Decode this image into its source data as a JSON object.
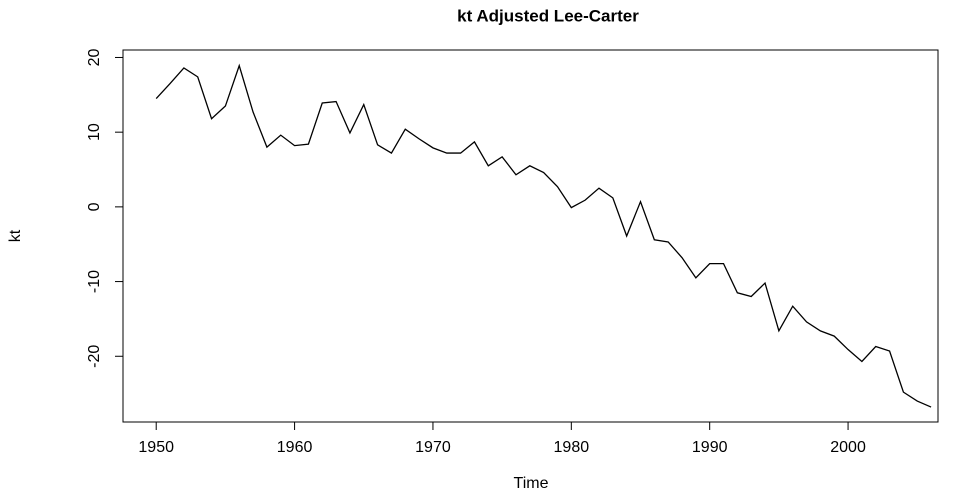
{
  "chart_data": {
    "type": "line",
    "title": "kt Adjusted Lee-Carter",
    "xlabel": "Time",
    "ylabel": "kt",
    "x": [
      1950,
      1951,
      1952,
      1953,
      1954,
      1955,
      1956,
      1957,
      1958,
      1959,
      1960,
      1961,
      1962,
      1963,
      1964,
      1965,
      1966,
      1967,
      1968,
      1969,
      1970,
      1971,
      1972,
      1973,
      1974,
      1975,
      1976,
      1977,
      1978,
      1979,
      1980,
      1981,
      1982,
      1983,
      1984,
      1985,
      1986,
      1987,
      1988,
      1989,
      1990,
      1991,
      1992,
      1993,
      1994,
      1995,
      1996,
      1997,
      1998,
      1999,
      2000,
      2001,
      2002,
      2003,
      2004,
      2005,
      2006
    ],
    "values": [
      14.5,
      16.5,
      18.6,
      17.4,
      11.8,
      13.5,
      18.9,
      12.7,
      8.0,
      9.6,
      8.2,
      8.4,
      13.9,
      14.1,
      9.9,
      13.7,
      8.3,
      7.2,
      10.4,
      9.1,
      7.9,
      7.2,
      7.2,
      8.7,
      5.5,
      6.7,
      4.3,
      5.5,
      4.6,
      2.7,
      -0.1,
      0.9,
      2.5,
      1.2,
      -3.9,
      0.7,
      -4.4,
      -4.7,
      -6.8,
      -9.5,
      -7.6,
      -7.6,
      -11.5,
      -12.0,
      -10.2,
      -16.6,
      -13.3,
      -15.4,
      -16.6,
      -17.3,
      -19.1,
      -20.7,
      -18.7,
      -19.3,
      -24.8,
      -26.0,
      -26.8
    ],
    "color": "#000000",
    "xlim": [
      1947.6,
      2006.5
    ],
    "xticks": [
      1950,
      1960,
      1970,
      1980,
      1990,
      2000
    ],
    "ylim": [
      -28.8,
      21.0
    ],
    "yticks": [
      -20,
      -10,
      0,
      10,
      20
    ]
  }
}
